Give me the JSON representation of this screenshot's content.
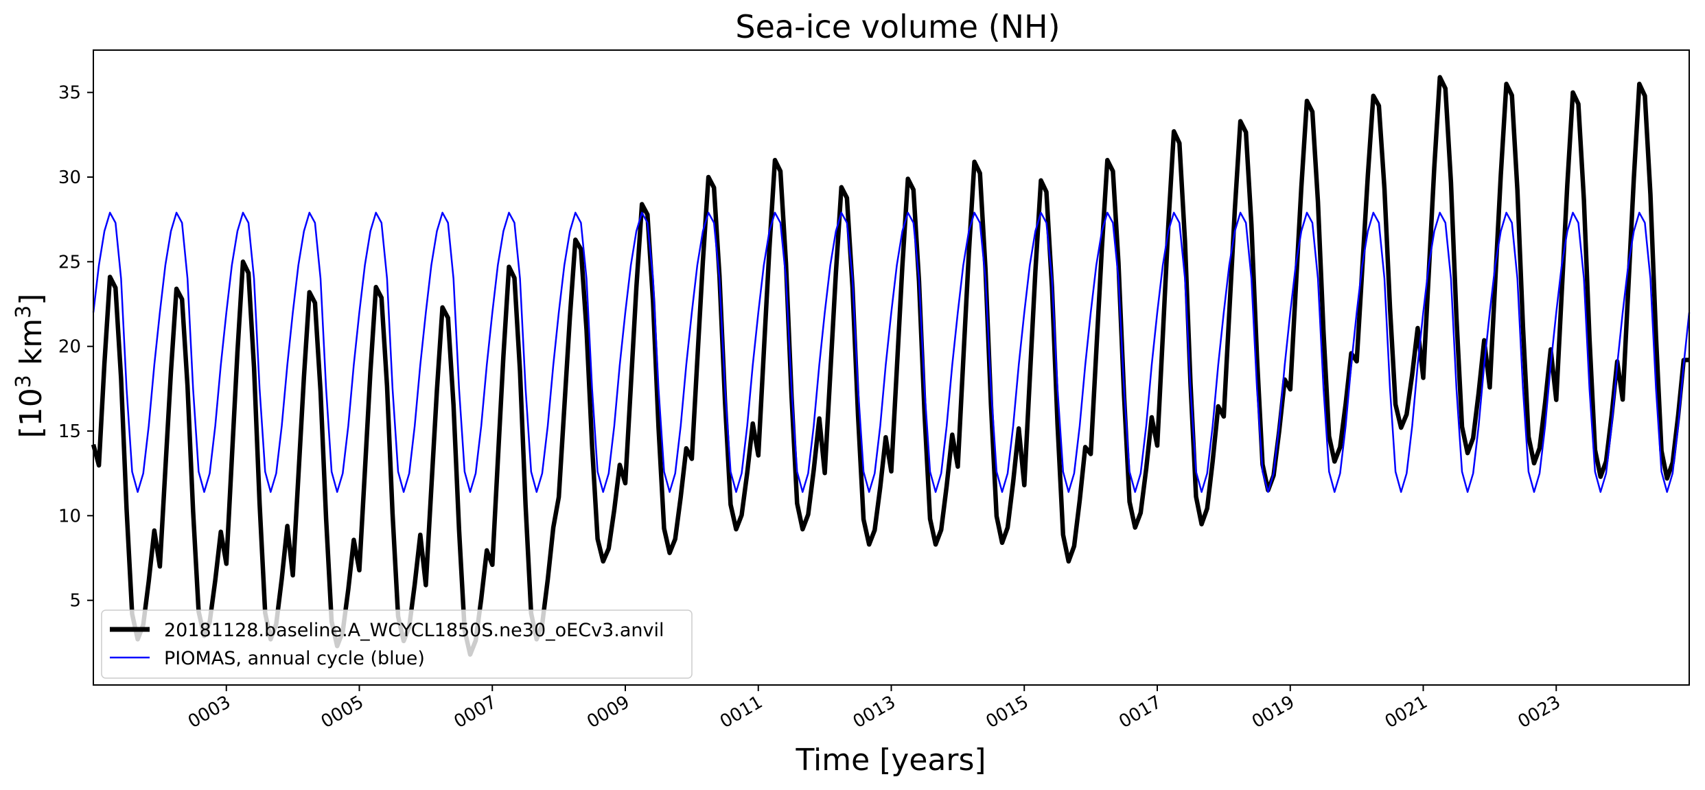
{
  "chart_data": {
    "type": "line",
    "title": "Sea-ice volume (NH)",
    "xlabel": "Time [years]",
    "ylabel_base": "[10",
    "ylabel_exp1": "3",
    "ylabel_mid": " km",
    "ylabel_exp2": "3",
    "ylabel_end": "]",
    "xlim": [
      1,
      25
    ],
    "ylim": [
      0,
      37.5
    ],
    "x_ticks": [
      3,
      5,
      7,
      9,
      11,
      13,
      15,
      17,
      19,
      21,
      23
    ],
    "x_tick_labels": [
      "0003",
      "0005",
      "0007",
      "0009",
      "0011",
      "0013",
      "0015",
      "0017",
      "0019",
      "0021",
      "0023"
    ],
    "y_ticks": [
      5,
      10,
      15,
      20,
      25,
      30,
      35
    ],
    "y_tick_labels": [
      "5",
      "10",
      "15",
      "20",
      "25",
      "30",
      "35"
    ],
    "grid": false,
    "legend_position": "lower-left",
    "model_cycle": {
      "description_note": "monthly values, years 0001-0024 (Jan of year 1 at x=1.0)",
      "annual_max": [
        24.1,
        23.4,
        25.0,
        23.2,
        23.5,
        22.3,
        24.7,
        26.3,
        28.4,
        30.0,
        31.0,
        29.4,
        29.9,
        30.9,
        29.8,
        31.0,
        32.7,
        33.3,
        34.5,
        34.8,
        35.9,
        35.5,
        35.0,
        35.5
      ],
      "annual_min": [
        2.7,
        2.9,
        2.7,
        2.3,
        2.6,
        1.8,
        2.7,
        7.3,
        7.8,
        9.2,
        9.2,
        8.3,
        8.3,
        8.4,
        7.3,
        9.3,
        9.5,
        11.5,
        13.2,
        15.2,
        13.7,
        13.1,
        12.3,
        12.2
      ]
    },
    "series": [
      {
        "name": "20181128.baseline.A_WCYCL1850S.ne30_oECv3.anvil",
        "color": "#000000",
        "start_value": 14.2,
        "end_value": 19.2
      },
      {
        "name": "PIOMAS, annual cycle (blue)",
        "color": "#0000ff",
        "climatology": [
          22.0,
          24.8,
          26.8,
          27.9,
          27.3,
          24.0,
          17.5,
          12.6,
          11.4,
          12.5,
          15.3,
          18.9
        ]
      }
    ]
  }
}
